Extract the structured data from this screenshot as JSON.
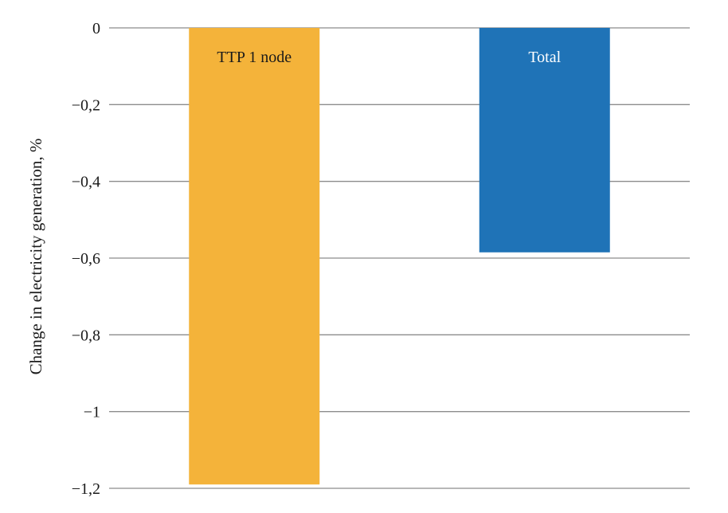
{
  "chart_data": {
    "type": "bar",
    "categories": [
      "TTP 1 node",
      "Total"
    ],
    "values": [
      -1.19,
      -0.585
    ],
    "ylabel": "Change in electricity generation, %",
    "ylim": [
      -1.2,
      0
    ],
    "yticks": [
      0,
      -0.2,
      -0.4,
      -0.6,
      -0.8,
      -1,
      -1.2
    ],
    "ytick_labels": [
      "0",
      "−0,2",
      "−0,4",
      "−0,6",
      "−0,8",
      "−1",
      "−1,2"
    ],
    "grid": true,
    "legend": "none",
    "bar_colors": [
      "#F4B33A",
      "#1F73B7"
    ],
    "bar_label_colors": [
      "#1a1a1a",
      "#ffffff"
    ]
  }
}
